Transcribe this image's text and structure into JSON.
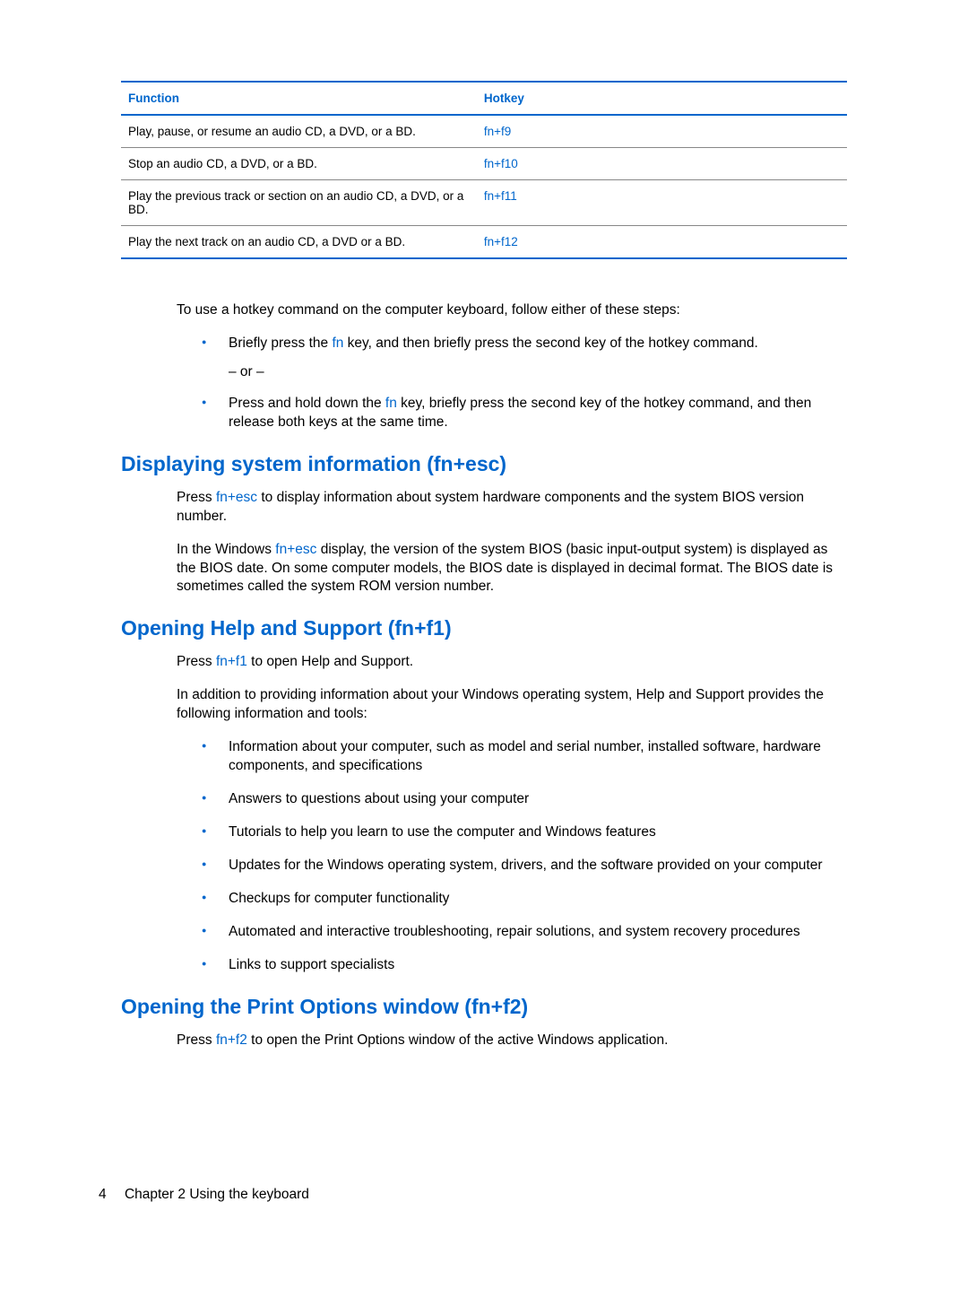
{
  "table": {
    "header_function": "Function",
    "header_hotkey": "Hotkey",
    "rows": [
      {
        "func": "Play, pause, or resume an audio CD, a DVD, or a BD.",
        "hotkey": "fn+f9"
      },
      {
        "func": "Stop an audio CD, a DVD, or a BD.",
        "hotkey": "fn+f10"
      },
      {
        "func": "Play the previous track or section on an audio CD, a DVD, or a BD.",
        "hotkey": "fn+f11"
      },
      {
        "func": "Play the next track on an audio CD, a DVD or a BD.",
        "hotkey": "fn+f12"
      }
    ]
  },
  "intro": "To use a hotkey command on the computer keyboard, follow either of these steps:",
  "step1_pre": "Briefly press the ",
  "fn_text": "fn",
  "step1_post": " key, and then briefly press the second key of the hotkey command.",
  "or_text": "– or –",
  "step2_pre": "Press and hold down the ",
  "step2_post": " key, briefly press the second key of the hotkey command, and then release both keys at the same time.",
  "sec1_heading": "Displaying system information (fn+esc)",
  "sec1_p1_pre": "Press ",
  "sec1_p1_key": "fn+esc",
  "sec1_p1_post": " to display information about system hardware components and the system BIOS version number.",
  "sec1_p2_pre": "In the Windows ",
  "sec1_p2_key": "fn+esc",
  "sec1_p2_post": " display, the version of the system BIOS (basic input-output system) is displayed as the BIOS date. On some computer models, the BIOS date is displayed in decimal format. The BIOS date is sometimes called the system ROM version number.",
  "sec2_heading": "Opening Help and Support (fn+f1)",
  "sec2_p1_pre": "Press ",
  "sec2_p1_key": "fn+f1",
  "sec2_p1_post": " to open Help and Support.",
  "sec2_p2": "In addition to providing information about your Windows operating system, Help and Support provides the following information and tools:",
  "sec2_bullets": {
    "b0": "Information about your computer, such as model and serial number, installed software, hardware components, and specifications",
    "b1": "Answers to questions about using your computer",
    "b2": "Tutorials to help you learn to use the computer and Windows features",
    "b3": "Updates for the Windows operating system, drivers, and the software provided on your computer",
    "b4": "Checkups for computer functionality",
    "b5": "Automated and interactive troubleshooting, repair solutions, and system recovery procedures",
    "b6": "Links to support specialists"
  },
  "sec3_heading": "Opening the Print Options window (fn+f2)",
  "sec3_p1_pre": "Press ",
  "sec3_p1_key": "fn+f2",
  "sec3_p1_post": " to open the Print Options window of the active Windows application.",
  "footer_page": "4",
  "footer_chapter": "Chapter 2   Using the keyboard",
  "colors": {
    "accent_blue": "#0066cc",
    "text_black": "#000000",
    "rule_gray": "#888888",
    "background": "#ffffff"
  }
}
